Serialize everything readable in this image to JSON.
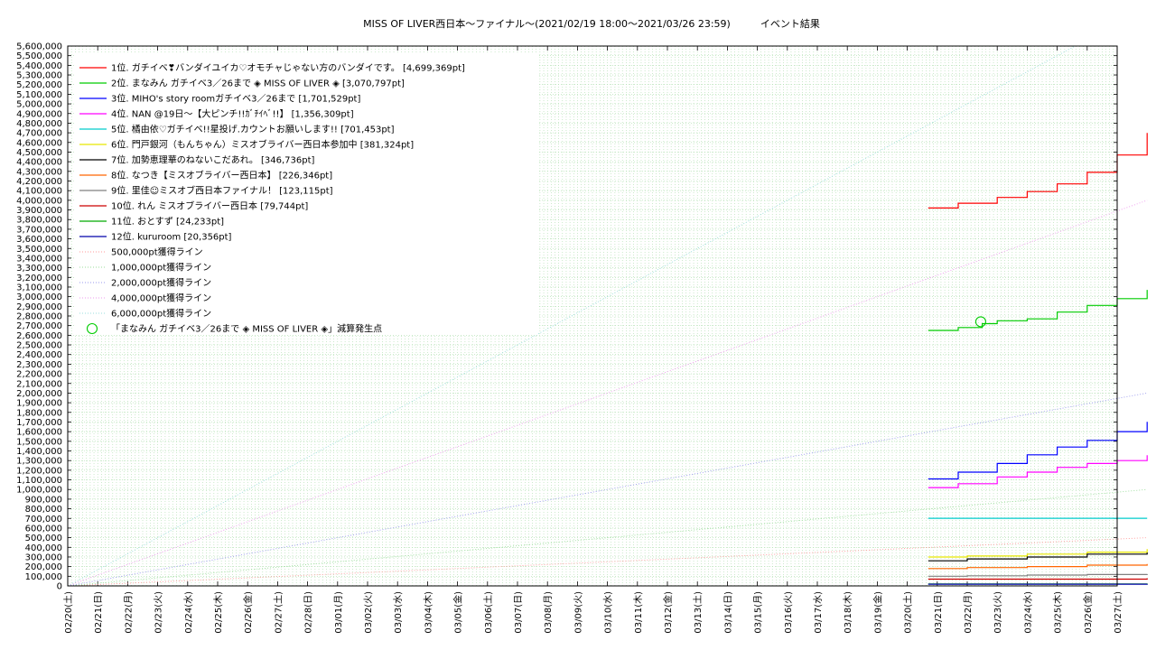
{
  "chart_data": {
    "type": "line",
    "title": "MISS OF LIVER西日本〜ファイナル〜(2021/02/19 18:00〜2021/03/26 23:59)　　　イベント結果",
    "xlabel": "",
    "ylabel": "",
    "ylim": [
      0,
      5600000
    ],
    "xlim": [
      "2021-02-20",
      "2021-03-27"
    ],
    "y_ticks": [
      "0",
      "100,000",
      "200,000",
      "300,000",
      "400,000",
      "500,000",
      "600,000",
      "700,000",
      "800,000",
      "900,000",
      "1,000,000",
      "1,100,000",
      "1,200,000",
      "1,300,000",
      "1,400,000",
      "1,500,000",
      "1,600,000",
      "1,700,000",
      "1,800,000",
      "1,900,000",
      "2,000,000",
      "2,100,000",
      "2,200,000",
      "2,300,000",
      "2,400,000",
      "2,500,000",
      "2,600,000",
      "2,700,000",
      "2,800,000",
      "2,900,000",
      "3,000,000",
      "3,100,000",
      "3,200,000",
      "3,300,000",
      "3,400,000",
      "3,500,000",
      "3,600,000",
      "3,700,000",
      "3,800,000",
      "3,900,000",
      "4,000,000",
      "4,100,000",
      "4,200,000",
      "4,300,000",
      "4,400,000",
      "4,500,000",
      "4,600,000",
      "4,700,000",
      "4,800,000",
      "4,900,000",
      "5,000,000",
      "5,100,000",
      "5,200,000",
      "5,300,000",
      "5,400,000",
      "5,500,000",
      "5,600,000"
    ],
    "x_ticks": [
      "02/20(土)",
      "02/21(日)",
      "02/22(月)",
      "02/23(火)",
      "02/24(水)",
      "02/25(木)",
      "02/26(金)",
      "02/27(土)",
      "02/28(日)",
      "03/01(月)",
      "03/02(火)",
      "03/03(水)",
      "03/04(木)",
      "03/05(金)",
      "03/06(土)",
      "03/07(日)",
      "03/08(月)",
      "03/09(火)",
      "03/10(水)",
      "03/11(木)",
      "03/12(金)",
      "03/13(土)",
      "03/14(日)",
      "03/15(月)",
      "03/16(火)",
      "03/17(水)",
      "03/18(木)",
      "03/19(金)",
      "03/20(土)",
      "03/21(日)",
      "03/22(月)",
      "03/23(火)",
      "03/24(水)",
      "03/25(木)",
      "03/26(金)",
      "03/27(土)"
    ],
    "grid": true,
    "legend_position": "top-left",
    "series": [
      {
        "name": "1位. ガチイベ❣バンダイユイカ♡オモチャじゃない方のバンダイです。 [4,699,369pt]",
        "color": "#ff0000",
        "style": "solid",
        "x": [
          28.7,
          29.7,
          31,
          32,
          33,
          34,
          35,
          36
        ],
        "y": [
          3920000,
          3970000,
          4030000,
          4090000,
          4170000,
          4290000,
          4470000,
          4699369
        ]
      },
      {
        "name": "2位. まなみん ガチイベ3／26まで ◈ MISS OF LIVER ◈ [3,070,797pt]",
        "color": "#00cc00",
        "style": "solid",
        "x": [
          28.7,
          29.7,
          30.5,
          31,
          32,
          33,
          34,
          35,
          36
        ],
        "y": [
          2650000,
          2680000,
          2720000,
          2750000,
          2770000,
          2840000,
          2910000,
          2980000,
          3070797
        ]
      },
      {
        "name": "3位. MIHO's story roomガチイベ3／26まで [1,701,529pt]",
        "color": "#0000ff",
        "style": "solid",
        "x": [
          28.7,
          29.7,
          31,
          32,
          33,
          34,
          35,
          36
        ],
        "y": [
          1110000,
          1180000,
          1270000,
          1360000,
          1440000,
          1510000,
          1600000,
          1701529
        ]
      },
      {
        "name": "4位. NAN @19日〜【大ピンチ!!ｶﾞﾁｲﾍﾞ!!】 [1,356,309pt]",
        "color": "#ff00ff",
        "style": "solid",
        "x": [
          28.7,
          29.7,
          31,
          32,
          33,
          34,
          35,
          36
        ],
        "y": [
          1020000,
          1060000,
          1130000,
          1180000,
          1230000,
          1270000,
          1300000,
          1356309
        ]
      },
      {
        "name": "5位. 橘由依♡ガチイベ!!星投げ.カウントお願いします!! [701,453pt]",
        "color": "#00cccc",
        "style": "solid",
        "x": [
          28.7,
          36
        ],
        "y": [
          701453,
          701453
        ]
      },
      {
        "name": "6位. 門戸銀河（もんちゃん）ミスオブライバー西日本参加中 [381,324pt]",
        "color": "#e6e600",
        "style": "solid",
        "x": [
          28.7,
          30,
          32,
          34,
          36
        ],
        "y": [
          300000,
          310000,
          330000,
          350000,
          381324
        ]
      },
      {
        "name": "7位. 加勢恵理華のねないこだあれ。 [346,736pt]",
        "color": "#000000",
        "style": "solid",
        "x": [
          28.7,
          30,
          32,
          34,
          36
        ],
        "y": [
          260000,
          280000,
          300000,
          330000,
          346736
        ]
      },
      {
        "name": "8位. なつき【ミスオブライバー西日本】 [226,346pt]",
        "color": "#ff6600",
        "style": "solid",
        "x": [
          28.7,
          30,
          32,
          34,
          36
        ],
        "y": [
          180000,
          190000,
          200000,
          215000,
          226346
        ]
      },
      {
        "name": "9位. 里佳☺ミスオブ西日本ファイナル！ [123,115pt]",
        "color": "#808080",
        "style": "solid",
        "x": [
          28.7,
          30,
          32,
          34,
          36
        ],
        "y": [
          100000,
          105000,
          112000,
          118000,
          123115
        ]
      },
      {
        "name": "10位. れん ミスオブライバー西日本 [79,744pt]",
        "color": "#cc0000",
        "style": "solid",
        "x": [
          28.7,
          36
        ],
        "y": [
          70000,
          79744
        ]
      },
      {
        "name": "11位. おとすず [24,233pt]",
        "color": "#00aa00",
        "style": "solid",
        "x": [
          28.7,
          36
        ],
        "y": [
          20000,
          24233
        ]
      },
      {
        "name": "12位. kururoom [20,356pt]",
        "color": "#0000aa",
        "style": "solid",
        "x": [
          28.7,
          36
        ],
        "y": [
          18000,
          20356
        ]
      },
      {
        "name": "500,000pt獲得ライン",
        "color": "#ff9999",
        "style": "dotted",
        "x": [
          0,
          36
        ],
        "y": [
          0,
          500000
        ]
      },
      {
        "name": "1,000,000pt獲得ライン",
        "color": "#99dd99",
        "style": "dotted",
        "x": [
          0,
          36
        ],
        "y": [
          0,
          1000000
        ]
      },
      {
        "name": "2,000,000pt獲得ライン",
        "color": "#9999ee",
        "style": "dotted",
        "x": [
          0,
          36
        ],
        "y": [
          0,
          2000000
        ]
      },
      {
        "name": "4,000,000pt獲得ライン",
        "color": "#ee99ee",
        "style": "dotted",
        "x": [
          0,
          36
        ],
        "y": [
          0,
          4000000
        ]
      },
      {
        "name": "6,000,000pt獲得ライン",
        "color": "#99dddd",
        "style": "dotted",
        "x": [
          0,
          36
        ],
        "y": [
          0,
          6000000
        ]
      }
    ],
    "markers": [
      {
        "name": "「まなみん ガチイベ3／26まで ◈ MISS OF LIVER ◈」減算発生点",
        "color": "#00cc00",
        "shape": "circle",
        "x": 30.45,
        "y": 2740000
      }
    ]
  }
}
